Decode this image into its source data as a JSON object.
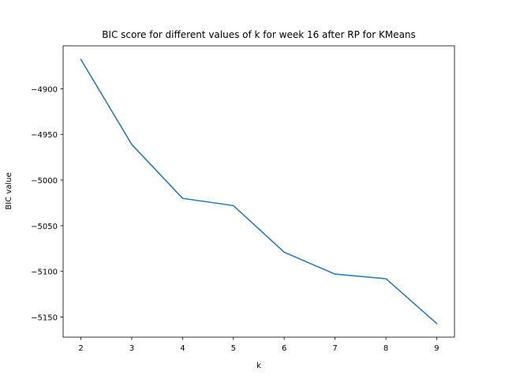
{
  "chart_data": {
    "type": "line",
    "title": "BIC score for different values of k for week 16 after RP for KMeans",
    "xlabel": "k",
    "ylabel": "BIC value",
    "x": [
      2,
      3,
      4,
      5,
      6,
      7,
      8,
      9
    ],
    "series": [
      {
        "values": [
          -4868,
          -4961,
          -5020,
          -5028,
          -5079,
          -5103,
          -5108,
          -5157
        ],
        "color": "#1f77b4"
      }
    ],
    "xlim": [
      1.65,
      9.35
    ],
    "ylim": [
      -5172,
      -4853
    ],
    "xticks": [
      2,
      3,
      4,
      5,
      6,
      7,
      8,
      9
    ],
    "yticks": [
      -4900,
      -4950,
      -5000,
      -5050,
      -5100,
      -5150
    ],
    "ytick_labels": [
      "−4900",
      "−4950",
      "−5000",
      "−5050",
      "−5100",
      "−5150"
    ],
    "grid": false,
    "legend": "none"
  }
}
